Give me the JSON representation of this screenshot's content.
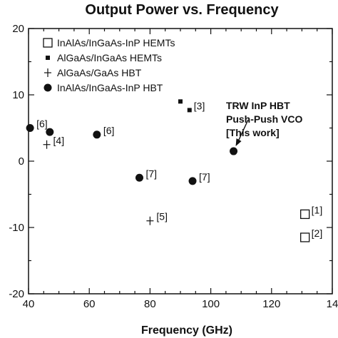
{
  "chart_data": {
    "type": "scatter",
    "title": "Output Power vs. Frequency",
    "xlabel": "Frequency (GHz)",
    "ylabel": "",
    "xlim": [
      40,
      140
    ],
    "ylim": [
      -20,
      20
    ],
    "xticks": [
      "40",
      "60",
      "80",
      "100",
      "120",
      "14"
    ],
    "yticks": [
      "20",
      "10",
      "0",
      "-10",
      "-20"
    ],
    "grid": false,
    "legend_position": "top-left",
    "series": [
      {
        "name": "InAlAs/InGaAs-InP HEMTs",
        "marker": "open-square",
        "points": [
          {
            "x": 131,
            "y": -8.0,
            "label": "[1]"
          },
          {
            "x": 131,
            "y": -11.5,
            "label": "[2]"
          }
        ]
      },
      {
        "name": "AlGaAs/InGaAs HEMTs",
        "marker": "small-filled-square",
        "points": [
          {
            "x": 90,
            "y": 9.0,
            "label": ""
          },
          {
            "x": 93,
            "y": 7.7,
            "label": "[3]"
          }
        ]
      },
      {
        "name": "AlGaAs/GaAs HBT",
        "marker": "plus",
        "points": [
          {
            "x": 46,
            "y": 2.5,
            "label": "[4]"
          },
          {
            "x": 80,
            "y": -9.0,
            "label": "[5]"
          }
        ]
      },
      {
        "name": "InAlAs/InGaAs-InP HBT",
        "marker": "filled-circle",
        "points": [
          {
            "x": 40.5,
            "y": 5.0,
            "label": "[6]"
          },
          {
            "x": 47,
            "y": 4.4,
            "label": ""
          },
          {
            "x": 62.5,
            "y": 4.0,
            "label": "[6]"
          },
          {
            "x": 76.5,
            "y": -2.5,
            "label": "[7]"
          },
          {
            "x": 94,
            "y": -3.0,
            "label": "[7]"
          },
          {
            "x": 107.5,
            "y": 1.5,
            "label": ""
          }
        ]
      }
    ],
    "annotation": {
      "lines": [
        "TRW InP HBT",
        "Push-Push VCO",
        "[This work]"
      ],
      "points_to": {
        "x": 107.5,
        "y": 1.5
      }
    }
  }
}
